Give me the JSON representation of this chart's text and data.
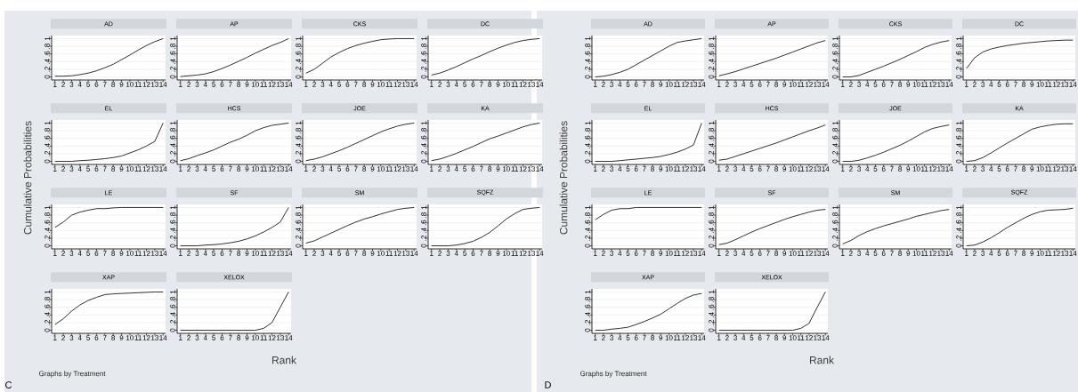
{
  "chart_data": [
    {
      "type": "line",
      "title": "AD",
      "ylabel": "Cumulative Probabilities",
      "x": [
        1,
        2,
        3,
        4,
        5,
        6,
        7,
        8,
        9,
        10,
        11,
        12,
        13,
        14
      ],
      "values": [
        0.02,
        0.02,
        0.03,
        0.06,
        0.1,
        0.16,
        0.24,
        0.33,
        0.45,
        0.57,
        0.7,
        0.82,
        0.92,
        1
      ],
      "color": "#1a1a1a",
      "xlim": [
        0.6,
        14.3
      ],
      "ylim": [
        -0.08,
        1.08
      ],
      "xticks": [
        1,
        2,
        3,
        4,
        5,
        6,
        7,
        8,
        9,
        10,
        11,
        12,
        13,
        14
      ],
      "yticks": [
        0,
        {
          "value": 0.2,
          "label": ".2"
        },
        {
          "value": 0.4,
          "label": ".4"
        },
        {
          "value": 0.6,
          "label": ".6"
        },
        {
          "value": 0.8,
          "label": ".8"
        },
        1
      ],
      "grid": "y"
    },
    {
      "type": "line",
      "title": "AP",
      "x": [
        1,
        2,
        3,
        4,
        5,
        6,
        7,
        8,
        9,
        10,
        11,
        12,
        13,
        14
      ],
      "values": [
        0.01,
        0.03,
        0.05,
        0.08,
        0.14,
        0.22,
        0.31,
        0.41,
        0.51,
        0.62,
        0.72,
        0.82,
        0.9,
        1
      ],
      "color": "#1a1a1a",
      "xlim": [
        0.6,
        14.3
      ],
      "ylim": [
        -0.08,
        1.08
      ],
      "xticks": [
        1,
        2,
        3,
        4,
        5,
        6,
        7,
        8,
        9,
        10,
        11,
        12,
        13,
        14
      ],
      "yticks": [
        0,
        {
          "value": 0.2,
          "label": ".2"
        },
        {
          "value": 0.4,
          "label": ".4"
        },
        {
          "value": 0.6,
          "label": ".6"
        },
        {
          "value": 0.8,
          "label": ".8"
        },
        1
      ],
      "grid": "y"
    },
    {
      "type": "line",
      "title": "CKS",
      "x": [
        1,
        2,
        3,
        4,
        5,
        6,
        7,
        8,
        9,
        10,
        11,
        12,
        13,
        14
      ],
      "values": [
        0.1,
        0.2,
        0.36,
        0.52,
        0.64,
        0.74,
        0.82,
        0.88,
        0.93,
        0.97,
        0.99,
        1,
        1,
        1
      ],
      "color": "#1a1a1a",
      "xlim": [
        0.6,
        14.3
      ],
      "ylim": [
        -0.08,
        1.08
      ],
      "xticks": [
        1,
        2,
        3,
        4,
        5,
        6,
        7,
        8,
        9,
        10,
        11,
        12,
        13,
        14
      ],
      "yticks": [
        0,
        {
          "value": 0.2,
          "label": ".2"
        },
        {
          "value": 0.4,
          "label": ".4"
        },
        {
          "value": 0.6,
          "label": ".6"
        },
        {
          "value": 0.8,
          "label": ".8"
        },
        1
      ],
      "grid": "y"
    },
    {
      "type": "line",
      "title": "DC",
      "x": [
        1,
        2,
        3,
        4,
        5,
        6,
        7,
        8,
        9,
        10,
        11,
        12,
        13,
        14
      ],
      "values": [
        0.05,
        0.1,
        0.18,
        0.27,
        0.37,
        0.47,
        0.56,
        0.66,
        0.75,
        0.83,
        0.9,
        0.95,
        0.98,
        1
      ],
      "color": "#1a1a1a",
      "xlim": [
        0.6,
        14.3
      ],
      "ylim": [
        -0.08,
        1.08
      ],
      "xticks": [
        1,
        2,
        3,
        4,
        5,
        6,
        7,
        8,
        9,
        10,
        11,
        12,
        13,
        14
      ],
      "yticks": [
        0,
        {
          "value": 0.2,
          "label": ".2"
        },
        {
          "value": 0.4,
          "label": ".4"
        },
        {
          "value": 0.6,
          "label": ".6"
        },
        {
          "value": 0.8,
          "label": ".8"
        },
        1
      ],
      "grid": "y"
    },
    {
      "type": "line",
      "title": "EL",
      "x": [
        1,
        2,
        3,
        4,
        5,
        6,
        7,
        8,
        9,
        10,
        11,
        12,
        13,
        14
      ],
      "values": [
        0,
        0,
        0,
        0.02,
        0.03,
        0.05,
        0.07,
        0.1,
        0.14,
        0.22,
        0.3,
        0.4,
        0.52,
        1
      ],
      "color": "#1a1a1a",
      "xlim": [
        0.6,
        14.3
      ],
      "ylim": [
        -0.08,
        1.08
      ],
      "xticks": [
        1,
        2,
        3,
        4,
        5,
        6,
        7,
        8,
        9,
        10,
        11,
        12,
        13,
        14
      ],
      "yticks": [
        0,
        {
          "value": 0.2,
          "label": ".2"
        },
        {
          "value": 0.4,
          "label": ".4"
        },
        {
          "value": 0.6,
          "label": ".6"
        },
        {
          "value": 0.8,
          "label": ".8"
        },
        1
      ],
      "grid": "y"
    },
    {
      "type": "line",
      "title": "HCS",
      "x": [
        1,
        2,
        3,
        4,
        5,
        6,
        7,
        8,
        9,
        10,
        11,
        12,
        13,
        14
      ],
      "values": [
        0.02,
        0.07,
        0.15,
        0.22,
        0.3,
        0.4,
        0.5,
        0.58,
        0.68,
        0.8,
        0.88,
        0.94,
        0.97,
        1
      ],
      "color": "#1a1a1a",
      "xlim": [
        0.6,
        14.3
      ],
      "ylim": [
        -0.08,
        1.08
      ],
      "xticks": [
        1,
        2,
        3,
        4,
        5,
        6,
        7,
        8,
        9,
        10,
        11,
        12,
        13,
        14
      ],
      "yticks": [
        0,
        {
          "value": 0.2,
          "label": ".2"
        },
        {
          "value": 0.4,
          "label": ".4"
        },
        {
          "value": 0.6,
          "label": ".6"
        },
        {
          "value": 0.8,
          "label": ".8"
        },
        1
      ],
      "grid": "y"
    },
    {
      "type": "line",
      "title": "JOE",
      "x": [
        1,
        2,
        3,
        4,
        5,
        6,
        7,
        8,
        9,
        10,
        11,
        12,
        13,
        14
      ],
      "values": [
        0.02,
        0.06,
        0.12,
        0.2,
        0.28,
        0.37,
        0.47,
        0.57,
        0.67,
        0.77,
        0.85,
        0.92,
        0.97,
        1
      ],
      "color": "#1a1a1a",
      "xlim": [
        0.6,
        14.3
      ],
      "ylim": [
        -0.08,
        1.08
      ],
      "xticks": [
        1,
        2,
        3,
        4,
        5,
        6,
        7,
        8,
        9,
        10,
        11,
        12,
        13,
        14
      ],
      "yticks": [
        0,
        {
          "value": 0.2,
          "label": ".2"
        },
        {
          "value": 0.4,
          "label": ".4"
        },
        {
          "value": 0.6,
          "label": ".6"
        },
        {
          "value": 0.8,
          "label": ".8"
        },
        1
      ],
      "grid": "y"
    },
    {
      "type": "line",
      "title": "KA",
      "x": [
        1,
        2,
        3,
        4,
        5,
        6,
        7,
        8,
        9,
        10,
        11,
        12,
        13,
        14
      ],
      "values": [
        0.02,
        0.06,
        0.13,
        0.21,
        0.3,
        0.39,
        0.49,
        0.59,
        0.66,
        0.74,
        0.82,
        0.9,
        0.96,
        1
      ],
      "color": "#1a1a1a",
      "xlim": [
        0.6,
        14.3
      ],
      "ylim": [
        -0.08,
        1.08
      ],
      "xticks": [
        1,
        2,
        3,
        4,
        5,
        6,
        7,
        8,
        9,
        10,
        11,
        12,
        13,
        14
      ],
      "yticks": [
        0,
        {
          "value": 0.2,
          "label": ".2"
        },
        {
          "value": 0.4,
          "label": ".4"
        },
        {
          "value": 0.6,
          "label": ".6"
        },
        {
          "value": 0.8,
          "label": ".8"
        },
        1
      ],
      "grid": "y"
    },
    {
      "type": "line",
      "title": "LE",
      "x": [
        1,
        2,
        3,
        4,
        5,
        6,
        7,
        8,
        9,
        10,
        11,
        12,
        13,
        14
      ],
      "values": [
        0.48,
        0.62,
        0.8,
        0.88,
        0.93,
        0.97,
        0.97,
        0.99,
        1,
        1,
        1,
        1,
        1,
        1
      ],
      "color": "#1a1a1a",
      "xlim": [
        0.6,
        14.3
      ],
      "ylim": [
        -0.08,
        1.08
      ],
      "xticks": [
        1,
        2,
        3,
        4,
        5,
        6,
        7,
        8,
        9,
        10,
        11,
        12,
        13,
        14
      ],
      "yticks": [
        0,
        {
          "value": 0.2,
          "label": ".2"
        },
        {
          "value": 0.4,
          "label": ".4"
        },
        {
          "value": 0.6,
          "label": ".6"
        },
        {
          "value": 0.8,
          "label": ".8"
        },
        1
      ],
      "grid": "y"
    },
    {
      "type": "line",
      "title": "SF",
      "x": [
        1,
        2,
        3,
        4,
        5,
        6,
        7,
        8,
        9,
        10,
        11,
        12,
        13,
        14
      ],
      "values": [
        0,
        0,
        0,
        0.02,
        0.03,
        0.05,
        0.08,
        0.12,
        0.18,
        0.26,
        0.36,
        0.48,
        0.62,
        1
      ],
      "color": "#1a1a1a",
      "xlim": [
        0.6,
        14.3
      ],
      "ylim": [
        -0.08,
        1.08
      ],
      "xticks": [
        1,
        2,
        3,
        4,
        5,
        6,
        7,
        8,
        9,
        10,
        11,
        12,
        13,
        14
      ],
      "yticks": [
        0,
        {
          "value": 0.2,
          "label": ".2"
        },
        {
          "value": 0.4,
          "label": ".4"
        },
        {
          "value": 0.6,
          "label": ".6"
        },
        {
          "value": 0.8,
          "label": ".8"
        },
        1
      ],
      "grid": "y"
    },
    {
      "type": "line",
      "title": "SM",
      "x": [
        1,
        2,
        3,
        4,
        5,
        6,
        7,
        8,
        9,
        10,
        11,
        12,
        13,
        14
      ],
      "values": [
        0.07,
        0.13,
        0.23,
        0.33,
        0.43,
        0.53,
        0.62,
        0.7,
        0.76,
        0.83,
        0.89,
        0.95,
        0.98,
        1
      ],
      "color": "#1a1a1a",
      "xlim": [
        0.6,
        14.3
      ],
      "ylim": [
        -0.08,
        1.08
      ],
      "xticks": [
        1,
        2,
        3,
        4,
        5,
        6,
        7,
        8,
        9,
        10,
        11,
        12,
        13,
        14
      ],
      "yticks": [
        0,
        {
          "value": 0.2,
          "label": ".2"
        },
        {
          "value": 0.4,
          "label": ".4"
        },
        {
          "value": 0.6,
          "label": ".6"
        },
        {
          "value": 0.8,
          "label": ".8"
        },
        1
      ],
      "grid": "y"
    },
    {
      "type": "line",
      "title": "SQFZ",
      "x": [
        1,
        2,
        3,
        4,
        5,
        6,
        7,
        8,
        9,
        10,
        11,
        12,
        13,
        14
      ],
      "values": [
        0,
        0,
        0,
        0.02,
        0.06,
        0.12,
        0.22,
        0.35,
        0.52,
        0.7,
        0.84,
        0.95,
        0.98,
        1
      ],
      "color": "#1a1a1a",
      "xlim": [
        0.6,
        14.3
      ],
      "ylim": [
        -0.08,
        1.08
      ],
      "xticks": [
        1,
        2,
        3,
        4,
        5,
        6,
        7,
        8,
        9,
        10,
        11,
        12,
        13,
        14
      ],
      "yticks": [
        0,
        {
          "value": 0.2,
          "label": ".2"
        },
        {
          "value": 0.4,
          "label": ".4"
        },
        {
          "value": 0.6,
          "label": ".6"
        },
        {
          "value": 0.8,
          "label": ".8"
        },
        1
      ],
      "grid": "y"
    },
    {
      "type": "line",
      "title": "XAP",
      "x": [
        1,
        2,
        3,
        4,
        5,
        6,
        7,
        8,
        9,
        10,
        11,
        12,
        13,
        14
      ],
      "values": [
        0.15,
        0.3,
        0.5,
        0.66,
        0.78,
        0.86,
        0.93,
        0.95,
        0.96,
        0.97,
        0.98,
        0.99,
        1,
        1
      ],
      "color": "#1a1a1a",
      "xlim": [
        0.6,
        14.3
      ],
      "ylim": [
        -0.08,
        1.08
      ],
      "xticks": [
        1,
        2,
        3,
        4,
        5,
        6,
        7,
        8,
        9,
        10,
        11,
        12,
        13,
        14
      ],
      "yticks": [
        0,
        {
          "value": 0.2,
          "label": ".2"
        },
        {
          "value": 0.4,
          "label": ".4"
        },
        {
          "value": 0.6,
          "label": ".6"
        },
        {
          "value": 0.8,
          "label": ".8"
        },
        1
      ],
      "grid": "y"
    },
    {
      "type": "line",
      "title": "XELOX",
      "xlabel": "Rank",
      "annotations": [
        "Graphs by Treatment",
        "C"
      ],
      "x": [
        1,
        2,
        3,
        4,
        5,
        6,
        7,
        8,
        9,
        10,
        11,
        12,
        13,
        14
      ],
      "values": [
        0,
        0,
        0,
        0,
        0,
        0,
        0,
        0,
        0,
        0,
        0.05,
        0.2,
        0.6,
        1
      ],
      "color": "#1a1a1a",
      "xlim": [
        0.6,
        14.3
      ],
      "ylim": [
        -0.08,
        1.08
      ],
      "xticks": [
        1,
        2,
        3,
        4,
        5,
        6,
        7,
        8,
        9,
        10,
        11,
        12,
        13,
        14
      ],
      "yticks": [
        0,
        {
          "value": 0.2,
          "label": ".2"
        },
        {
          "value": 0.4,
          "label": ".4"
        },
        {
          "value": 0.6,
          "label": ".6"
        },
        {
          "value": 0.8,
          "label": ".8"
        },
        1
      ],
      "grid": "y"
    },
    {
      "type": "line",
      "title": "AD",
      "ylabel": "Cumulative Probabilities",
      "x": [
        1,
        2,
        3,
        4,
        5,
        6,
        7,
        8,
        9,
        10,
        11,
        12,
        13,
        14
      ],
      "values": [
        0,
        0.02,
        0.06,
        0.12,
        0.2,
        0.32,
        0.44,
        0.56,
        0.68,
        0.8,
        0.9,
        0.94,
        0.97,
        1
      ],
      "color": "#1a1a1a",
      "xlim": [
        0.6,
        14.3
      ],
      "ylim": [
        -0.08,
        1.08
      ],
      "xticks": [
        1,
        2,
        3,
        4,
        5,
        6,
        7,
        8,
        9,
        10,
        11,
        12,
        13,
        14
      ],
      "yticks": [
        0,
        {
          "value": 0.2,
          "label": ".2"
        },
        {
          "value": 0.4,
          "label": ".4"
        },
        {
          "value": 0.6,
          "label": ".6"
        },
        {
          "value": 0.8,
          "label": ".8"
        },
        1
      ],
      "grid": "y"
    },
    {
      "type": "line",
      "title": "AP",
      "x": [
        1,
        2,
        3,
        4,
        5,
        6,
        7,
        8,
        9,
        10,
        11,
        12,
        13,
        14
      ],
      "values": [
        0.03,
        0.08,
        0.14,
        0.21,
        0.28,
        0.35,
        0.42,
        0.49,
        0.57,
        0.65,
        0.73,
        0.81,
        0.89,
        0.95
      ],
      "color": "#1a1a1a",
      "xlim": [
        0.6,
        14.3
      ],
      "ylim": [
        -0.08,
        1.08
      ],
      "xticks": [
        1,
        2,
        3,
        4,
        5,
        6,
        7,
        8,
        9,
        10,
        11,
        12,
        13,
        14
      ],
      "yticks": [
        0,
        {
          "value": 0.2,
          "label": ".2"
        },
        {
          "value": 0.4,
          "label": ".4"
        },
        {
          "value": 0.6,
          "label": ".6"
        },
        {
          "value": 0.8,
          "label": ".8"
        },
        1
      ],
      "grid": "y"
    },
    {
      "type": "line",
      "title": "CKS",
      "x": [
        1,
        2,
        3,
        4,
        5,
        6,
        7,
        8,
        9,
        10,
        11,
        12,
        13,
        14
      ],
      "values": [
        0,
        0,
        0.04,
        0.12,
        0.2,
        0.28,
        0.37,
        0.46,
        0.56,
        0.66,
        0.77,
        0.85,
        0.91,
        0.95
      ],
      "color": "#1a1a1a",
      "xlim": [
        0.6,
        14.3
      ],
      "ylim": [
        -0.08,
        1.08
      ],
      "xticks": [
        1,
        2,
        3,
        4,
        5,
        6,
        7,
        8,
        9,
        10,
        11,
        12,
        13,
        14
      ],
      "yticks": [
        0,
        {
          "value": 0.2,
          "label": ".2"
        },
        {
          "value": 0.4,
          "label": ".4"
        },
        {
          "value": 0.6,
          "label": ".6"
        },
        {
          "value": 0.8,
          "label": ".8"
        },
        1
      ],
      "grid": "y"
    },
    {
      "type": "line",
      "title": "DC",
      "x": [
        1,
        2,
        3,
        4,
        5,
        6,
        7,
        8,
        9,
        10,
        11,
        12,
        13,
        14
      ],
      "values": [
        0.22,
        0.5,
        0.65,
        0.73,
        0.78,
        0.82,
        0.85,
        0.88,
        0.9,
        0.92,
        0.94,
        0.95,
        0.96,
        0.96
      ],
      "color": "#1a1a1a",
      "xlim": [
        0.6,
        14.3
      ],
      "ylim": [
        -0.08,
        1.08
      ],
      "xticks": [
        1,
        2,
        3,
        4,
        5,
        6,
        7,
        8,
        9,
        10,
        11,
        12,
        13,
        14
      ],
      "yticks": [
        0,
        {
          "value": 0.2,
          "label": ".2"
        },
        {
          "value": 0.4,
          "label": ".4"
        },
        {
          "value": 0.6,
          "label": ".6"
        },
        {
          "value": 0.8,
          "label": ".8"
        },
        1
      ],
      "grid": "y"
    },
    {
      "type": "line",
      "title": "EL",
      "x": [
        1,
        2,
        3,
        4,
        5,
        6,
        7,
        8,
        9,
        10,
        11,
        12,
        13,
        14
      ],
      "values": [
        0,
        0,
        0,
        0.02,
        0.04,
        0.06,
        0.08,
        0.1,
        0.13,
        0.18,
        0.24,
        0.32,
        0.43,
        1
      ],
      "color": "#1a1a1a",
      "xlim": [
        0.6,
        14.3
      ],
      "ylim": [
        -0.08,
        1.08
      ],
      "xticks": [
        1,
        2,
        3,
        4,
        5,
        6,
        7,
        8,
        9,
        10,
        11,
        12,
        13,
        14
      ],
      "yticks": [
        0,
        {
          "value": 0.2,
          "label": ".2"
        },
        {
          "value": 0.4,
          "label": ".4"
        },
        {
          "value": 0.6,
          "label": ".6"
        },
        {
          "value": 0.8,
          "label": ".8"
        },
        1
      ],
      "grid": "y"
    },
    {
      "type": "line",
      "title": "HCS",
      "x": [
        1,
        2,
        3,
        4,
        5,
        6,
        7,
        8,
        9,
        10,
        11,
        12,
        13,
        14
      ],
      "values": [
        0.03,
        0.06,
        0.13,
        0.2,
        0.27,
        0.34,
        0.41,
        0.48,
        0.56,
        0.64,
        0.72,
        0.8,
        0.87,
        0.95
      ],
      "color": "#1a1a1a",
      "xlim": [
        0.6,
        14.3
      ],
      "ylim": [
        -0.08,
        1.08
      ],
      "xticks": [
        1,
        2,
        3,
        4,
        5,
        6,
        7,
        8,
        9,
        10,
        11,
        12,
        13,
        14
      ],
      "yticks": [
        0,
        {
          "value": 0.2,
          "label": ".2"
        },
        {
          "value": 0.4,
          "label": ".4"
        },
        {
          "value": 0.6,
          "label": ".6"
        },
        {
          "value": 0.8,
          "label": ".8"
        },
        1
      ],
      "grid": "y"
    },
    {
      "type": "line",
      "title": "JOE",
      "x": [
        1,
        2,
        3,
        4,
        5,
        6,
        7,
        8,
        9,
        10,
        11,
        12,
        13,
        14
      ],
      "values": [
        0,
        0,
        0.03,
        0.09,
        0.16,
        0.24,
        0.33,
        0.42,
        0.53,
        0.65,
        0.77,
        0.86,
        0.91,
        0.95
      ],
      "color": "#1a1a1a",
      "xlim": [
        0.6,
        14.3
      ],
      "ylim": [
        -0.08,
        1.08
      ],
      "xticks": [
        1,
        2,
        3,
        4,
        5,
        6,
        7,
        8,
        9,
        10,
        11,
        12,
        13,
        14
      ],
      "yticks": [
        0,
        {
          "value": 0.2,
          "label": ".2"
        },
        {
          "value": 0.4,
          "label": ".4"
        },
        {
          "value": 0.6,
          "label": ".6"
        },
        {
          "value": 0.8,
          "label": ".8"
        },
        1
      ],
      "grid": "y"
    },
    {
      "type": "line",
      "title": "KA",
      "x": [
        1,
        2,
        3,
        4,
        5,
        6,
        7,
        8,
        9,
        10,
        11,
        12,
        13,
        14
      ],
      "values": [
        0,
        0.02,
        0.1,
        0.22,
        0.35,
        0.48,
        0.6,
        0.72,
        0.84,
        0.9,
        0.94,
        0.97,
        0.98,
        0.98
      ],
      "color": "#1a1a1a",
      "xlim": [
        0.6,
        14.3
      ],
      "ylim": [
        -0.08,
        1.08
      ],
      "xticks": [
        1,
        2,
        3,
        4,
        5,
        6,
        7,
        8,
        9,
        10,
        11,
        12,
        13,
        14
      ],
      "yticks": [
        0,
        {
          "value": 0.2,
          "label": ".2"
        },
        {
          "value": 0.4,
          "label": ".4"
        },
        {
          "value": 0.6,
          "label": ".6"
        },
        {
          "value": 0.8,
          "label": ".8"
        },
        1
      ],
      "grid": "y"
    },
    {
      "type": "line",
      "title": "LE",
      "x": [
        1,
        2,
        3,
        4,
        5,
        6,
        7,
        8,
        9,
        10,
        11,
        12,
        13,
        14
      ],
      "values": [
        0.68,
        0.82,
        0.93,
        0.97,
        0.97,
        1,
        1,
        1,
        1,
        1,
        1,
        1,
        1,
        1
      ],
      "color": "#1a1a1a",
      "xlim": [
        0.6,
        14.3
      ],
      "ylim": [
        -0.08,
        1.08
      ],
      "xticks": [
        1,
        2,
        3,
        4,
        5,
        6,
        7,
        8,
        9,
        10,
        11,
        12,
        13,
        14
      ],
      "yticks": [
        0,
        {
          "value": 0.2,
          "label": ".2"
        },
        {
          "value": 0.4,
          "label": ".4"
        },
        {
          "value": 0.6,
          "label": ".6"
        },
        {
          "value": 0.8,
          "label": ".8"
        },
        1
      ],
      "grid": "y"
    },
    {
      "type": "line",
      "title": "SF",
      "x": [
        1,
        2,
        3,
        4,
        5,
        6,
        7,
        8,
        9,
        10,
        11,
        12,
        13,
        14
      ],
      "values": [
        0.03,
        0.07,
        0.16,
        0.26,
        0.36,
        0.45,
        0.53,
        0.61,
        0.69,
        0.76,
        0.82,
        0.88,
        0.93,
        0.95
      ],
      "color": "#1a1a1a",
      "xlim": [
        0.6,
        14.3
      ],
      "ylim": [
        -0.08,
        1.08
      ],
      "xticks": [
        1,
        2,
        3,
        4,
        5,
        6,
        7,
        8,
        9,
        10,
        11,
        12,
        13,
        14
      ],
      "yticks": [
        0,
        {
          "value": 0.2,
          "label": ".2"
        },
        {
          "value": 0.4,
          "label": ".4"
        },
        {
          "value": 0.6,
          "label": ".6"
        },
        {
          "value": 0.8,
          "label": ".8"
        },
        1
      ],
      "grid": "y"
    },
    {
      "type": "line",
      "title": "SM",
      "x": [
        1,
        2,
        3,
        4,
        5,
        6,
        7,
        8,
        9,
        10,
        11,
        12,
        13,
        14
      ],
      "values": [
        0.05,
        0.14,
        0.27,
        0.37,
        0.45,
        0.52,
        0.58,
        0.64,
        0.7,
        0.77,
        0.82,
        0.87,
        0.92,
        0.95
      ],
      "color": "#1a1a1a",
      "xlim": [
        0.6,
        14.3
      ],
      "ylim": [
        -0.08,
        1.08
      ],
      "xticks": [
        1,
        2,
        3,
        4,
        5,
        6,
        7,
        8,
        9,
        10,
        11,
        12,
        13,
        14
      ],
      "yticks": [
        0,
        {
          "value": 0.2,
          "label": ".2"
        },
        {
          "value": 0.4,
          "label": ".4"
        },
        {
          "value": 0.6,
          "label": ".6"
        },
        {
          "value": 0.8,
          "label": ".8"
        },
        1
      ],
      "grid": "y"
    },
    {
      "type": "line",
      "title": "SQFZ",
      "x": [
        1,
        2,
        3,
        4,
        5,
        6,
        7,
        8,
        9,
        10,
        11,
        12,
        13,
        14
      ],
      "values": [
        0,
        0.02,
        0.1,
        0.21,
        0.34,
        0.48,
        0.6,
        0.72,
        0.82,
        0.89,
        0.93,
        0.94,
        0.95,
        0.98
      ],
      "color": "#1a1a1a",
      "xlim": [
        0.6,
        14.3
      ],
      "ylim": [
        -0.08,
        1.08
      ],
      "xticks": [
        1,
        2,
        3,
        4,
        5,
        6,
        7,
        8,
        9,
        10,
        11,
        12,
        13,
        14
      ],
      "yticks": [
        0,
        {
          "value": 0.2,
          "label": ".2"
        },
        {
          "value": 0.4,
          "label": ".4"
        },
        {
          "value": 0.6,
          "label": ".6"
        },
        {
          "value": 0.8,
          "label": ".8"
        },
        1
      ],
      "grid": "y"
    },
    {
      "type": "line",
      "title": "XAP",
      "x": [
        1,
        2,
        3,
        4,
        5,
        6,
        7,
        8,
        9,
        10,
        11,
        12,
        13,
        14
      ],
      "values": [
        0,
        0,
        0.03,
        0.05,
        0.08,
        0.15,
        0.23,
        0.32,
        0.42,
        0.56,
        0.7,
        0.83,
        0.92,
        0.96
      ],
      "color": "#1a1a1a",
      "xlim": [
        0.6,
        14.3
      ],
      "ylim": [
        -0.08,
        1.08
      ],
      "xticks": [
        1,
        2,
        3,
        4,
        5,
        6,
        7,
        8,
        9,
        10,
        11,
        12,
        13,
        14
      ],
      "yticks": [
        0,
        {
          "value": 0.2,
          "label": ".2"
        },
        {
          "value": 0.4,
          "label": ".4"
        },
        {
          "value": 0.6,
          "label": ".6"
        },
        {
          "value": 0.8,
          "label": ".8"
        },
        1
      ],
      "grid": "y"
    },
    {
      "type": "line",
      "title": "XELOX",
      "xlabel": "Rank",
      "annotations": [
        "Graphs by Treatment",
        "D"
      ],
      "x": [
        1,
        2,
        3,
        4,
        5,
        6,
        7,
        8,
        9,
        10,
        11,
        12,
        13,
        14
      ],
      "values": [
        0,
        0,
        0,
        0,
        0,
        0,
        0,
        0,
        0,
        0,
        0.05,
        0.18,
        0.6,
        1
      ],
      "color": "#1a1a1a",
      "xlim": [
        0.6,
        14.3
      ],
      "ylim": [
        -0.08,
        1.08
      ],
      "xticks": [
        1,
        2,
        3,
        4,
        5,
        6,
        7,
        8,
        9,
        10,
        11,
        12,
        13,
        14
      ],
      "yticks": [
        0,
        {
          "value": 0.2,
          "label": ".2"
        },
        {
          "value": 0.4,
          "label": ".4"
        },
        {
          "value": 0.6,
          "label": ".6"
        },
        {
          "value": 0.8,
          "label": ".8"
        },
        1
      ],
      "grid": "y"
    }
  ]
}
